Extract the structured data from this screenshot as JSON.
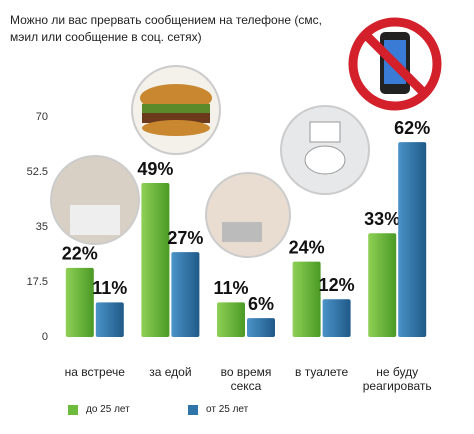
{
  "chart_data": {
    "type": "bar",
    "title": "Можно ли вас прервать сообщением на телефоне (смс, мэил или сообщение в соц. сетях)",
    "categories": [
      "на встрече",
      "за едой",
      "во время секса",
      "в туалете",
      "не буду реагировать"
    ],
    "series": [
      {
        "name": "до 25 лет",
        "color": "#6cbb3c",
        "values": [
          22,
          49,
          11,
          24,
          33
        ],
        "value_labels": [
          "22%",
          "49%",
          "11%",
          "24%",
          "33%"
        ]
      },
      {
        "name": "от 25 лет",
        "color": "#2f74a8",
        "values": [
          11,
          27,
          6,
          12,
          62
        ],
        "value_labels": [
          "11%",
          "27%",
          "6%",
          "12%",
          "62%"
        ]
      }
    ],
    "ylim": [
      0,
      70
    ],
    "yticks": [
      0,
      17.5,
      35,
      52.5,
      70
    ],
    "grid": false
  }
}
